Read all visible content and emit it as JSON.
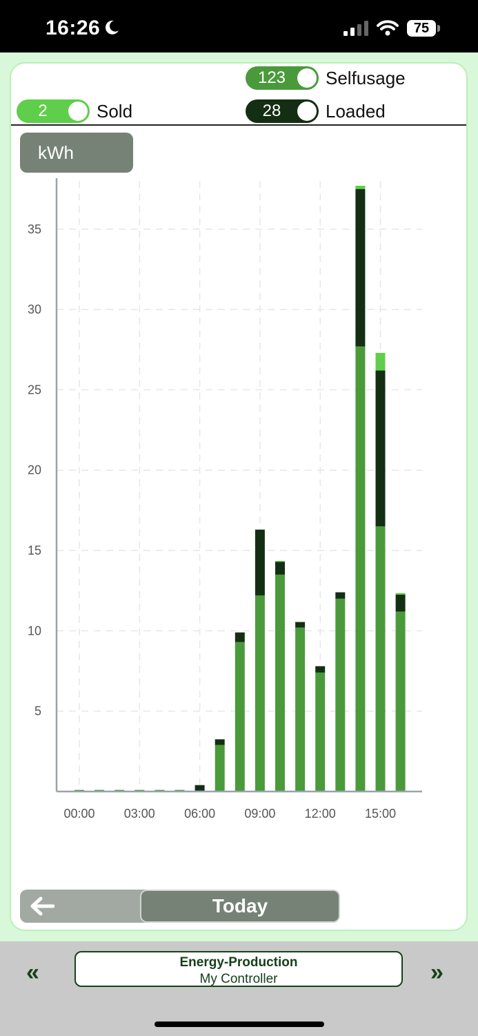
{
  "status_bar": {
    "time": "16:26",
    "battery": "75"
  },
  "legend": {
    "selfusage": {
      "value": "123",
      "label": "Selfusage",
      "color": "#4a9a3c"
    },
    "sold": {
      "value": "2",
      "label": "Sold",
      "color": "#5fce4a"
    },
    "loaded": {
      "value": "28",
      "label": "Loaded",
      "color": "#142e14"
    }
  },
  "unit_label": "kWh",
  "chart_data": {
    "type": "bar",
    "stacked": true,
    "x_ticks": [
      "00:00",
      "03:00",
      "06:00",
      "09:00",
      "12:00",
      "15:00"
    ],
    "y_ticks": [
      "5",
      "10",
      "15",
      "20",
      "25",
      "30",
      "35"
    ],
    "ylim": [
      0,
      38
    ],
    "categories": [
      "00:00",
      "01:00",
      "02:00",
      "03:00",
      "04:00",
      "05:00",
      "06:00",
      "07:00",
      "08:00",
      "09:00",
      "10:00",
      "11:00",
      "12:00",
      "13:00",
      "14:00",
      "15:00",
      "16:00"
    ],
    "series": [
      {
        "key": "selfusage",
        "values": [
          0.1,
          0.1,
          0.1,
          0.1,
          0.1,
          0.1,
          0.05,
          2.9,
          9.3,
          12.2,
          13.5,
          10.2,
          7.4,
          12.0,
          27.7,
          16.5,
          11.2
        ]
      },
      {
        "key": "loaded",
        "values": [
          0,
          0,
          0,
          0,
          0,
          0,
          0.35,
          0.35,
          0.6,
          4.1,
          0.8,
          0.35,
          0.4,
          0.4,
          9.8,
          9.7,
          1.05
        ]
      },
      {
        "key": "sold",
        "values": [
          0,
          0,
          0,
          0,
          0,
          0,
          0,
          0,
          0,
          0,
          0.05,
          0,
          0,
          0,
          0.2,
          1.1,
          0.1
        ]
      }
    ],
    "grid": true
  },
  "nav": {
    "today_label": "Today"
  },
  "footer": {
    "title": "Energy-Production",
    "subtitle": "My Controller"
  }
}
